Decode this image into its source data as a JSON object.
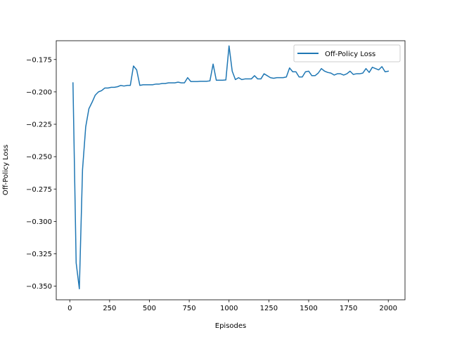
{
  "chart_data": {
    "type": "line",
    "title": "",
    "xlabel": "Episodes",
    "ylabel": "Off-Policy Loss",
    "xlim": [
      -85,
      2105
    ],
    "ylim": [
      -0.3605,
      -0.1605
    ],
    "xticks": [
      0,
      250,
      500,
      750,
      1000,
      1250,
      1500,
      1750,
      2000
    ],
    "xtick_labels": [
      "0",
      "250",
      "500",
      "750",
      "1000",
      "1250",
      "1500",
      "1750",
      "2000"
    ],
    "yticks": [
      -0.35,
      -0.325,
      -0.3,
      -0.275,
      -0.25,
      -0.225,
      -0.2,
      -0.175
    ],
    "ytick_labels": [
      "−0.350",
      "−0.325",
      "−0.300",
      "−0.275",
      "−0.250",
      "−0.225",
      "−0.200",
      "−0.175"
    ],
    "grid": false,
    "legend_position": "top-right",
    "series": [
      {
        "name": "Off-Policy Loss",
        "color": "#1f77b4",
        "x": [
          20,
          40,
          60,
          80,
          100,
          120,
          140,
          160,
          180,
          200,
          220,
          240,
          260,
          280,
          300,
          320,
          340,
          360,
          380,
          400,
          420,
          440,
          460,
          480,
          500,
          520,
          540,
          560,
          580,
          600,
          620,
          640,
          660,
          680,
          700,
          720,
          740,
          760,
          780,
          800,
          820,
          840,
          860,
          880,
          900,
          920,
          940,
          960,
          980,
          1000,
          1020,
          1040,
          1060,
          1080,
          1100,
          1120,
          1140,
          1160,
          1180,
          1200,
          1220,
          1240,
          1260,
          1280,
          1300,
          1320,
          1340,
          1360,
          1380,
          1400,
          1420,
          1440,
          1460,
          1480,
          1500,
          1520,
          1540,
          1560,
          1580,
          1600,
          1620,
          1640,
          1660,
          1680,
          1700,
          1720,
          1740,
          1760,
          1780,
          1800,
          1820,
          1840,
          1860,
          1880,
          1900,
          1920,
          1940,
          1960,
          1980,
          2000
        ],
        "values": [
          -0.193,
          -0.332,
          -0.352,
          -0.26,
          -0.227,
          -0.213,
          -0.208,
          -0.2025,
          -0.2,
          -0.199,
          -0.197,
          -0.197,
          -0.1965,
          -0.1965,
          -0.196,
          -0.195,
          -0.1955,
          -0.195,
          -0.195,
          -0.18,
          -0.183,
          -0.195,
          -0.1945,
          -0.1945,
          -0.1945,
          -0.1945,
          -0.194,
          -0.194,
          -0.1935,
          -0.1935,
          -0.193,
          -0.193,
          -0.193,
          -0.1925,
          -0.193,
          -0.193,
          -0.189,
          -0.192,
          -0.192,
          -0.192,
          -0.1918,
          -0.1918,
          -0.1918,
          -0.1915,
          -0.1785,
          -0.191,
          -0.191,
          -0.191,
          -0.1908,
          -0.1645,
          -0.184,
          -0.1905,
          -0.189,
          -0.1905,
          -0.19,
          -0.19,
          -0.19,
          -0.1875,
          -0.19,
          -0.19,
          -0.186,
          -0.1875,
          -0.189,
          -0.1895,
          -0.189,
          -0.189,
          -0.189,
          -0.1885,
          -0.1815,
          -0.1845,
          -0.1845,
          -0.1885,
          -0.1885,
          -0.1845,
          -0.184,
          -0.1875,
          -0.1875,
          -0.1855,
          -0.182,
          -0.184,
          -0.185,
          -0.1855,
          -0.187,
          -0.186,
          -0.186,
          -0.187,
          -0.186,
          -0.184,
          -0.1865,
          -0.186,
          -0.186,
          -0.1855,
          -0.182,
          -0.185,
          -0.181,
          -0.182,
          -0.183,
          -0.1805,
          -0.1845,
          -0.184
        ]
      }
    ]
  }
}
